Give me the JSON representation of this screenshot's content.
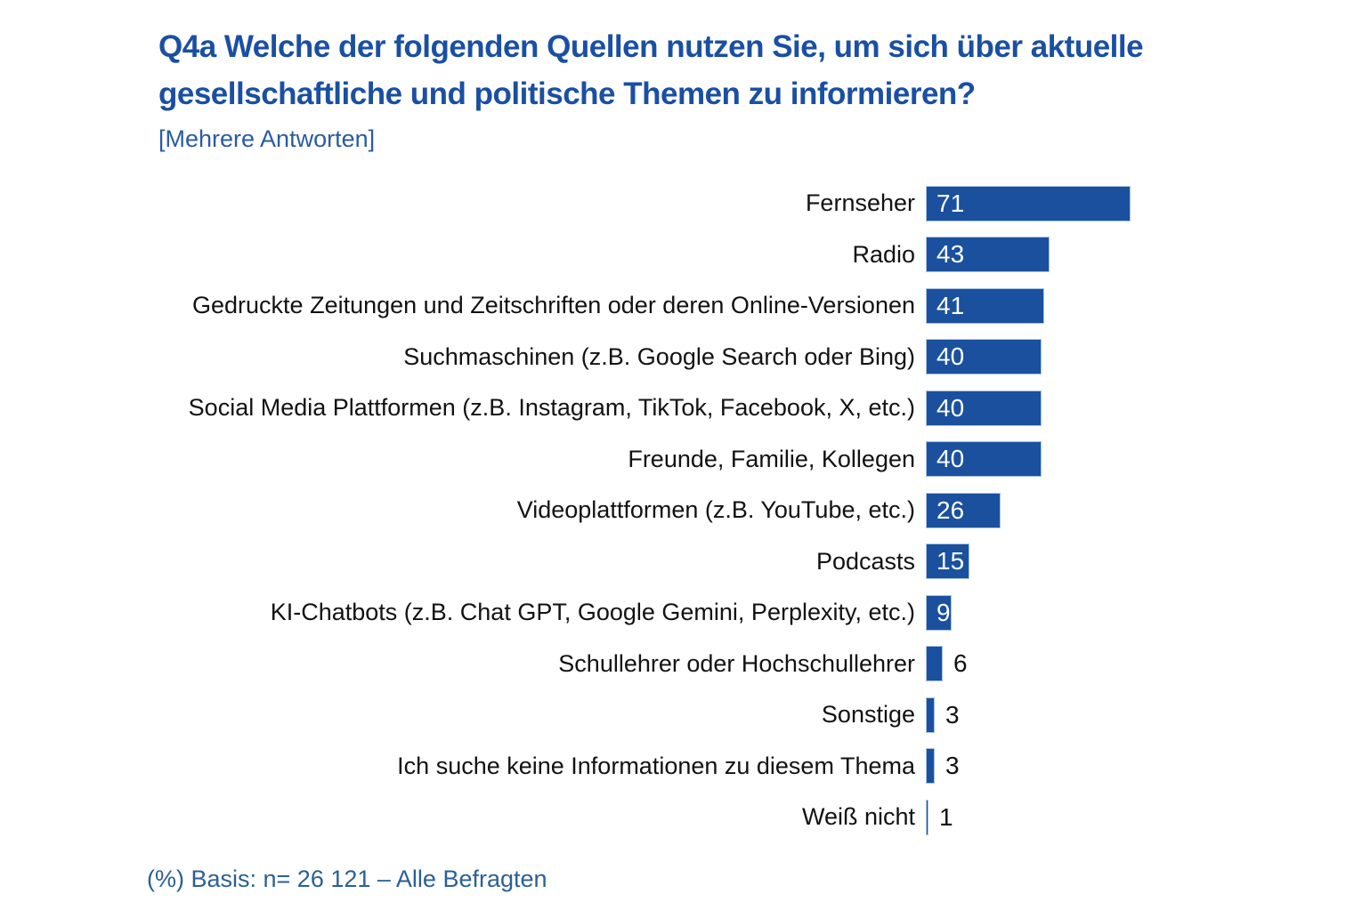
{
  "chart_data": {
    "type": "bar",
    "orientation": "horizontal",
    "title": "Q4a Welche der folgenden Quellen nutzen Sie, um sich über aktuelle gesellschaftliche und politische Themen zu informieren?",
    "title_lines": [
      "Q4a Welche der folgenden Quellen nutzen Sie, um sich über aktuelle",
      "gesellschaftliche und politische Themen zu informieren?"
    ],
    "subtitle": "[Mehrere Antworten]",
    "unit": "%",
    "categories": [
      "Fernseher",
      "Radio",
      "Gedruckte Zeitungen und Zeitschriften oder deren Online-Versionen",
      "Suchmaschinen (z.B. Google Search oder Bing)",
      "Social Media Plattformen (z.B. Instagram, TikTok, Facebook, X, etc.)",
      "Freunde, Familie, Kollegen",
      "Videoplattformen (z.B. YouTube, etc.)",
      "Podcasts",
      "KI-Chatbots (z.B. Chat GPT, Google Gemini, Perplexity, etc.)",
      "Schullehrer oder Hochschullehrer",
      "Sonstige",
      "Ich suche keine Informationen zu diesem Thema",
      "Weiß nicht"
    ],
    "values": [
      71,
      43,
      41,
      40,
      40,
      40,
      26,
      15,
      9,
      6,
      3,
      3,
      1
    ],
    "xlim": [
      0,
      75
    ],
    "value_labels_shown": true,
    "grid": false,
    "legend": "none",
    "note": "(%) Basis: n= 26 121 – Alle Befragten"
  },
  "colors": {
    "bar_fill": "#1a509e",
    "bar_border": "#a9c4e4",
    "title": "#1a4fa3",
    "subtitle": "#2a5ba3",
    "category_label": "#121212",
    "value_inside": "#ffffff",
    "value_outside": "#121212",
    "footer": "#2a6096",
    "background": "#ffffff"
  }
}
